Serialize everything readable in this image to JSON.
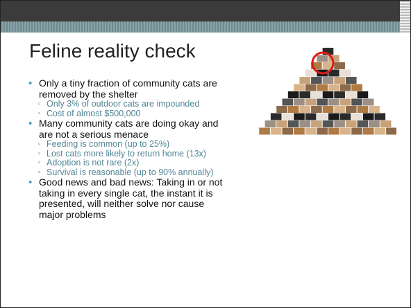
{
  "slide": {
    "title": "Feline reality check",
    "bullets": [
      {
        "text": "Only a tiny fraction of community cats are removed by the shelter",
        "sub": [
          "Only 3% of outdoor cats are impounded",
          "Cost of almost $500,000"
        ]
      },
      {
        "text": "Many community cats are doing okay and are not a serious menace",
        "sub": [
          "Feeding is common (up to 25%)",
          "Lost cats more likely to return home (13x)",
          "Adoption is not rare (2x)",
          "Survival is reasonable (up to 90% annually)"
        ]
      },
      {
        "text": "Good news and bad news: Taking in or not taking in every single cat, the instant it is presented, will neither solve nor cause major problems",
        "sub": []
      }
    ]
  }
}
